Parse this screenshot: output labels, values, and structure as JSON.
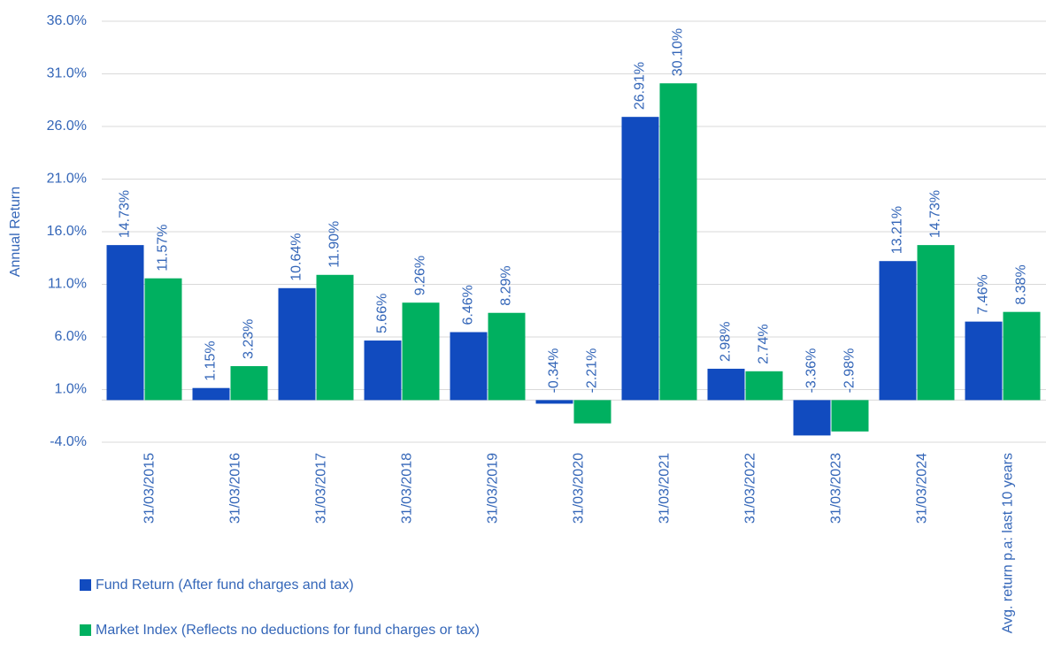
{
  "chart_data": {
    "type": "bar",
    "y_label": "Annual Return",
    "categories": [
      "31/03/2015",
      "31/03/2016",
      "31/03/2017",
      "31/03/2018",
      "31/03/2019",
      "31/03/2020",
      "31/03/2021",
      "31/03/2022",
      "31/03/2023",
      "31/03/2024",
      "Avg. return p.a: last 10 years"
    ],
    "series": [
      {
        "name": "Fund Return (After fund charges and tax)",
        "color": "#114bbf",
        "values": [
          14.73,
          1.15,
          10.64,
          5.66,
          6.46,
          -0.34,
          26.91,
          2.98,
          -3.36,
          13.21,
          7.46
        ],
        "value_labels": [
          "14.73%",
          "1.15%",
          "10.64%",
          "5.66%",
          "6.46%",
          "-0.34%",
          "26.91%",
          "2.98%",
          "-3.36%",
          "13.21%",
          "7.46%"
        ]
      },
      {
        "name": "Market Index (Reflects no deductions for fund charges or tax)",
        "color": "#00b060",
        "values": [
          11.57,
          3.23,
          11.9,
          9.26,
          8.29,
          -2.21,
          30.1,
          2.74,
          -2.98,
          14.73,
          8.38
        ],
        "value_labels": [
          "11.57%",
          "3.23%",
          "11.90%",
          "9.26%",
          "8.29%",
          "-2.21%",
          "30.10%",
          "2.74%",
          "-2.98%",
          "14.73%",
          "8.38%"
        ]
      }
    ],
    "ylim": [
      -4,
      36
    ],
    "yticks": [
      {
        "value": -4,
        "label": "-4.0%"
      },
      {
        "value": 1,
        "label": "1.0%"
      },
      {
        "value": 6,
        "label": "6.0%"
      },
      {
        "value": 11,
        "label": "11.0%"
      },
      {
        "value": 16,
        "label": "16.0%"
      },
      {
        "value": 21,
        "label": "21.0%"
      },
      {
        "value": 26,
        "label": "26.0%"
      },
      {
        "value": 31,
        "label": "31.0%"
      },
      {
        "value": 36,
        "label": "36.0%"
      }
    ],
    "grid": true
  }
}
